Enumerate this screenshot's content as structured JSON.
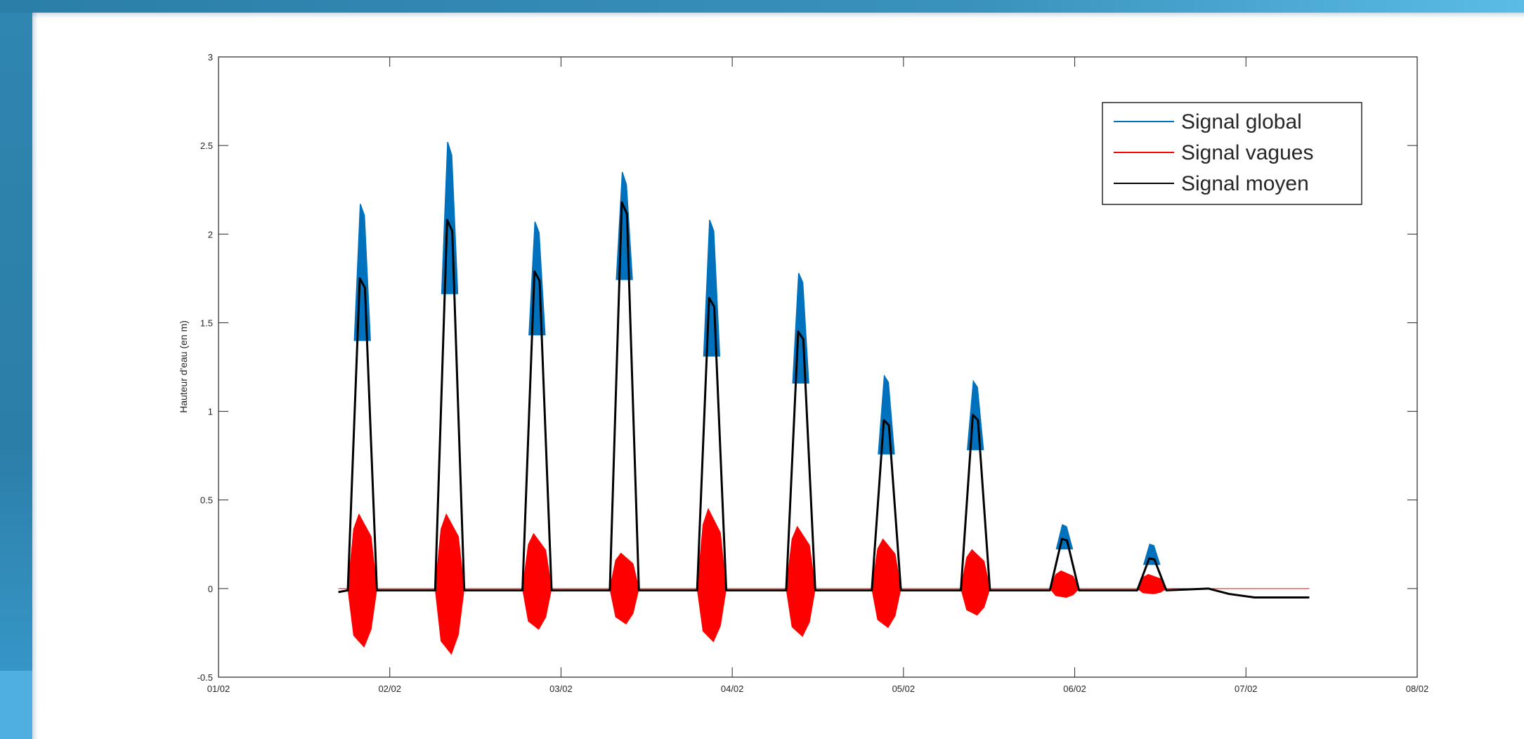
{
  "chart_data": {
    "type": "line",
    "ylabel": "Hauteur d'eau (en m)",
    "xlabel": "",
    "title": "",
    "xlim": [
      0,
      7
    ],
    "ylim": [
      -0.5,
      3
    ],
    "x_tick_labels": [
      "01/02",
      "02/02",
      "03/02",
      "04/02",
      "05/02",
      "06/02",
      "07/02",
      "08/02"
    ],
    "y_tick_labels": [
      "-0.5",
      "0",
      "0.5",
      "1",
      "1.5",
      "2",
      "2.5",
      "3"
    ],
    "y_tick_values": [
      -0.5,
      0,
      0.5,
      1,
      1.5,
      2,
      2.5,
      3
    ],
    "grid": false,
    "legend_position": "top-right",
    "series": [
      {
        "name": "Signal global",
        "color": "#0072BD",
        "description_points": [
          {
            "x": 0.84,
            "y": 2.17
          },
          {
            "x": 1.35,
            "y": 2.52
          },
          {
            "x": 1.86,
            "y": 2.07
          },
          {
            "x": 2.37,
            "y": 2.35
          },
          {
            "x": 2.88,
            "y": 2.08
          },
          {
            "x": 3.4,
            "y": 1.78
          },
          {
            "x": 3.9,
            "y": 1.2
          },
          {
            "x": 4.42,
            "y": 1.17
          },
          {
            "x": 4.94,
            "y": 0.36
          },
          {
            "x": 5.45,
            "y": 0.25
          }
        ]
      },
      {
        "name": "Signal vagues",
        "color": "#FF0000",
        "description_points": [
          {
            "x": 0.84,
            "y_max": 0.42,
            "y_min": -0.33
          },
          {
            "x": 1.35,
            "y_max": 0.42,
            "y_min": -0.37
          },
          {
            "x": 1.86,
            "y_max": 0.31,
            "y_min": -0.23
          },
          {
            "x": 2.37,
            "y_max": 0.2,
            "y_min": -0.2
          },
          {
            "x": 2.88,
            "y_max": 0.45,
            "y_min": -0.3
          },
          {
            "x": 3.4,
            "y_max": 0.35,
            "y_min": -0.27
          },
          {
            "x": 3.9,
            "y_max": 0.28,
            "y_min": -0.22
          },
          {
            "x": 4.42,
            "y_max": 0.22,
            "y_min": -0.15
          },
          {
            "x": 4.94,
            "y_max": 0.1,
            "y_min": -0.05
          },
          {
            "x": 5.45,
            "y_max": 0.08,
            "y_min": -0.03
          }
        ]
      },
      {
        "name": "Signal moyen",
        "color": "#000000",
        "description_points": [
          {
            "x": 0.84,
            "y": 1.75
          },
          {
            "x": 1.35,
            "y": 2.08
          },
          {
            "x": 1.86,
            "y": 1.79
          },
          {
            "x": 2.37,
            "y": 2.18
          },
          {
            "x": 2.88,
            "y": 1.64
          },
          {
            "x": 3.4,
            "y": 1.45
          },
          {
            "x": 3.9,
            "y": 0.95
          },
          {
            "x": 4.42,
            "y": 0.98
          },
          {
            "x": 4.94,
            "y": 0.28
          },
          {
            "x": 5.45,
            "y": 0.17
          }
        ]
      }
    ],
    "data_range_x": [
      0.7,
      6.37
    ],
    "tail_level": -0.05
  }
}
